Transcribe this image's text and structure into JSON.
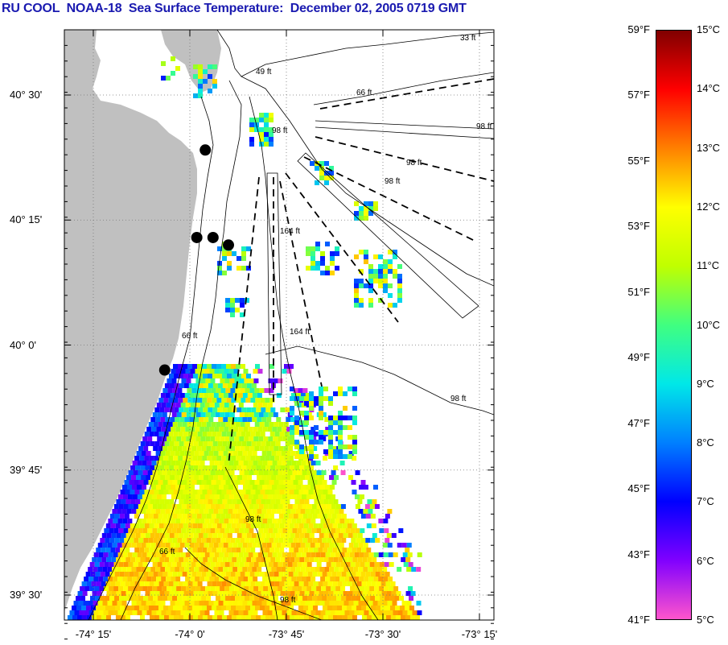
{
  "title": "RU COOL  NOAA-18  Sea Surface Temperature:  December 02, 2005 0719 GMT",
  "map": {
    "lat_ticks": [
      {
        "label": "40° 30'",
        "lat": 40.5
      },
      {
        "label": "40° 15'",
        "lat": 40.25
      },
      {
        "label": "40° 0'",
        "lat": 40.0
      },
      {
        "label": "39° 45'",
        "lat": 39.75
      },
      {
        "label": "39° 30'",
        "lat": 39.5
      }
    ],
    "lon_ticks": [
      {
        "label": "-74° 15'",
        "lon": -74.25
      },
      {
        "label": "-74° 0'",
        "lon": -74.0
      },
      {
        "label": "-73° 45'",
        "lon": -73.75
      },
      {
        "label": "-73° 30'",
        "lon": -73.5
      },
      {
        "label": "-73° 15'",
        "lon": -73.25
      }
    ],
    "depth_labels": [
      "33 ft",
      "49 ft",
      "66 ft",
      "98 ft",
      "98 ft",
      "98 ft",
      "98 ft",
      "164 ft",
      "66 ft",
      "164 ft",
      "98 ft",
      "66 ft",
      "98 ft",
      "98 ft"
    ],
    "stations": [
      {
        "lat": 40.39,
        "lon": -73.96
      },
      {
        "lat": 40.215,
        "lon": -73.982
      },
      {
        "lat": 40.215,
        "lon": -73.94
      },
      {
        "lat": 40.2,
        "lon": -73.9
      },
      {
        "lat": 39.95,
        "lon": -74.065
      }
    ],
    "colors": {
      "land": "#c0c0c0",
      "water": "#ffffff",
      "grid": "#777777"
    }
  },
  "colorbar": {
    "fahrenheit_labels": [
      "59°F",
      "57°F",
      "55°F",
      "53°F",
      "51°F",
      "49°F",
      "47°F",
      "45°F",
      "43°F",
      "41°F"
    ],
    "celsius_labels": [
      "15°C",
      "14°C",
      "13°C",
      "12°C",
      "11°C",
      "10°C",
      "9°C",
      "8°C",
      "7°C",
      "6°C",
      "5°C"
    ],
    "min_c": 5,
    "max_c": 15,
    "color_stops": [
      "#ff55cc",
      "#8000ff",
      "#0000ff",
      "#0080ff",
      "#00e8e8",
      "#40ff80",
      "#c0ff00",
      "#ffff00",
      "#ff8000",
      "#ff0000",
      "#800000"
    ]
  }
}
